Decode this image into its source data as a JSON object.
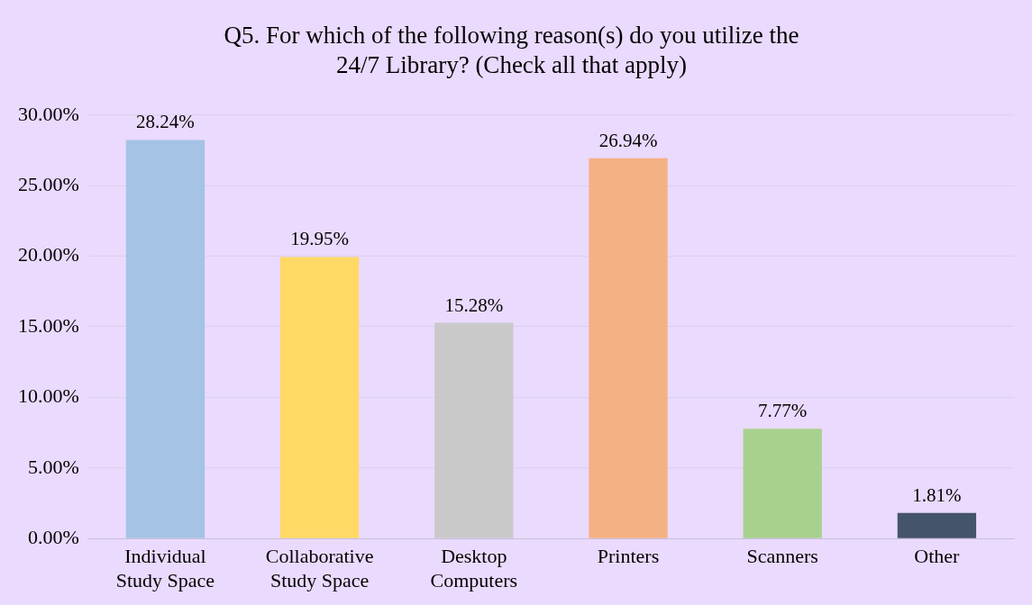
{
  "chart_data": {
    "type": "bar",
    "title": "Q5. For which of the following reason(s) do you utilize the 24/7 Library? (Check all that apply)",
    "categories": [
      "Individual Study Space",
      "Collaborative Study Space",
      "Desktop Computers",
      "Printers",
      "Scanners",
      "Other"
    ],
    "values": [
      28.24,
      19.95,
      15.28,
      26.94,
      7.77,
      1.81
    ],
    "colors": [
      "#a5c3e5",
      "#ffd966",
      "#c9c9c9",
      "#f4b183",
      "#a9d18e",
      "#44546a"
    ],
    "value_labels": [
      "28.24%",
      "19.95%",
      "15.28%",
      "26.94%",
      "7.77%",
      "1.81%"
    ],
    "ylim": [
      0,
      30
    ],
    "yticks": [
      {
        "value": 0,
        "label": "0.00%"
      },
      {
        "value": 5,
        "label": "5.00%"
      },
      {
        "value": 10,
        "label": "10.00%"
      },
      {
        "value": 15,
        "label": "15.00%"
      },
      {
        "value": 20,
        "label": "20.00%"
      },
      {
        "value": 25,
        "label": "25.00%"
      },
      {
        "value": 30,
        "label": "30.00%"
      }
    ],
    "grid": "y",
    "legend": false
  }
}
